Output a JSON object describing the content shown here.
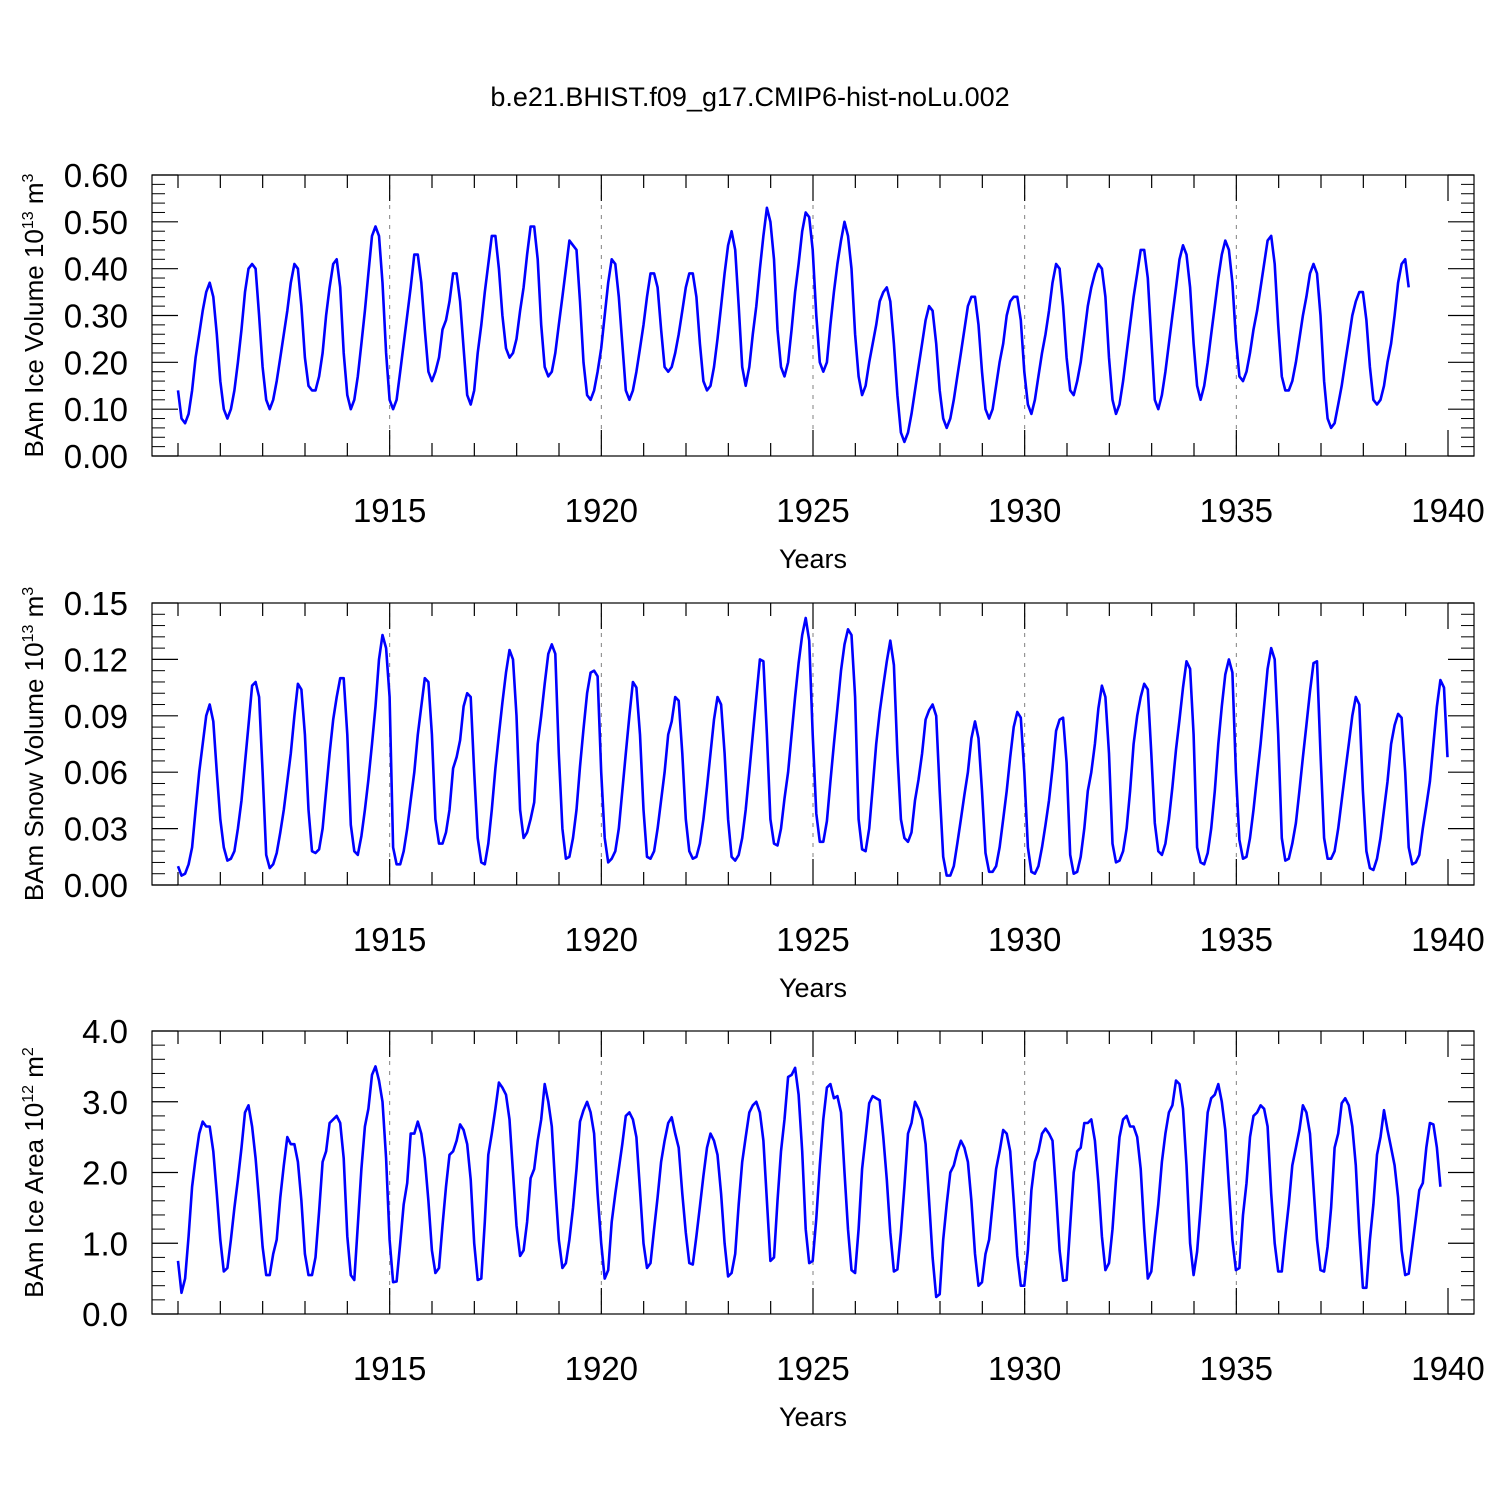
{
  "title": "b.e21.BHIST.f09_g17.CMIP6-hist-noLu.002",
  "line_color": "#0000ff",
  "chart_data": [
    {
      "type": "line",
      "ylabel": "BAm Ice Volume 10",
      "ylabel_exp": "13",
      "ylabel_unit": " m",
      "ylabel_unit_exp": "3",
      "xlabel": "Years",
      "xlim": [
        1910.0,
        1940.0
      ],
      "ylim": [
        0.0,
        0.6
      ],
      "yticks": [
        0.0,
        0.1,
        0.2,
        0.3,
        0.4,
        0.5,
        0.6
      ],
      "ytick_labels": [
        "0.00",
        "0.10",
        "0.20",
        "0.30",
        "0.40",
        "0.50",
        "0.60"
      ],
      "xticks": [
        1915,
        1920,
        1925,
        1930,
        1935,
        1940
      ],
      "xtick_labels": [
        "1915",
        "1920",
        "1925",
        "1930",
        "1935",
        "1940"
      ],
      "vertical_dashed_gridlines": true,
      "start_year": 1910.0,
      "step_years": 0.0833,
      "values": [
        0.14,
        0.08,
        0.07,
        0.09,
        0.14,
        0.21,
        0.26,
        0.31,
        0.35,
        0.37,
        0.34,
        0.26,
        0.16,
        0.1,
        0.08,
        0.1,
        0.14,
        0.2,
        0.27,
        0.35,
        0.4,
        0.41,
        0.4,
        0.3,
        0.19,
        0.12,
        0.1,
        0.12,
        0.16,
        0.21,
        0.26,
        0.31,
        0.37,
        0.41,
        0.4,
        0.32,
        0.21,
        0.15,
        0.14,
        0.14,
        0.17,
        0.22,
        0.3,
        0.36,
        0.41,
        0.42,
        0.36,
        0.22,
        0.13,
        0.1,
        0.12,
        0.17,
        0.24,
        0.31,
        0.39,
        0.47,
        0.49,
        0.47,
        0.37,
        0.22,
        0.12,
        0.1,
        0.12,
        0.18,
        0.24,
        0.3,
        0.36,
        0.43,
        0.43,
        0.37,
        0.27,
        0.18,
        0.16,
        0.18,
        0.21,
        0.27,
        0.29,
        0.33,
        0.39,
        0.39,
        0.33,
        0.23,
        0.13,
        0.11,
        0.14,
        0.22,
        0.28,
        0.35,
        0.41,
        0.47,
        0.47,
        0.4,
        0.3,
        0.23,
        0.21,
        0.22,
        0.25,
        0.31,
        0.36,
        0.43,
        0.49,
        0.49,
        0.42,
        0.28,
        0.19,
        0.17,
        0.18,
        0.22,
        0.28,
        0.34,
        0.4,
        0.46,
        0.45,
        0.44,
        0.33,
        0.2,
        0.13,
        0.12,
        0.14,
        0.18,
        0.23,
        0.3,
        0.37,
        0.42,
        0.41,
        0.34,
        0.24,
        0.14,
        0.12,
        0.14,
        0.18,
        0.23,
        0.28,
        0.34,
        0.39,
        0.39,
        0.36,
        0.27,
        0.19,
        0.18,
        0.19,
        0.22,
        0.26,
        0.31,
        0.36,
        0.39,
        0.39,
        0.34,
        0.24,
        0.16,
        0.14,
        0.15,
        0.19,
        0.25,
        0.32,
        0.39,
        0.45,
        0.48,
        0.44,
        0.32,
        0.19,
        0.15,
        0.19,
        0.26,
        0.32,
        0.4,
        0.47,
        0.53,
        0.5,
        0.42,
        0.27,
        0.19,
        0.17,
        0.2,
        0.27,
        0.35,
        0.41,
        0.48,
        0.52,
        0.51,
        0.44,
        0.3,
        0.2,
        0.18,
        0.2,
        0.28,
        0.35,
        0.41,
        0.46,
        0.5,
        0.47,
        0.4,
        0.26,
        0.17,
        0.13,
        0.15,
        0.2,
        0.24,
        0.28,
        0.33,
        0.35,
        0.36,
        0.33,
        0.24,
        0.13,
        0.05,
        0.03,
        0.05,
        0.09,
        0.14,
        0.19,
        0.24,
        0.29,
        0.32,
        0.31,
        0.24,
        0.14,
        0.08,
        0.06,
        0.08,
        0.12,
        0.17,
        0.22,
        0.27,
        0.32,
        0.34,
        0.34,
        0.28,
        0.18,
        0.1,
        0.08,
        0.1,
        0.15,
        0.2,
        0.24,
        0.3,
        0.33,
        0.34,
        0.34,
        0.29,
        0.18,
        0.11,
        0.09,
        0.12,
        0.17,
        0.22,
        0.26,
        0.31,
        0.37,
        0.41,
        0.4,
        0.32,
        0.21,
        0.14,
        0.13,
        0.16,
        0.2,
        0.26,
        0.32,
        0.36,
        0.39,
        0.41,
        0.4,
        0.34,
        0.21,
        0.12,
        0.09,
        0.11,
        0.16,
        0.22,
        0.28,
        0.34,
        0.39,
        0.44,
        0.44,
        0.38,
        0.25,
        0.12,
        0.1,
        0.13,
        0.18,
        0.24,
        0.3,
        0.36,
        0.42,
        0.45,
        0.43,
        0.36,
        0.24,
        0.15,
        0.12,
        0.15,
        0.2,
        0.26,
        0.32,
        0.38,
        0.43,
        0.46,
        0.44,
        0.37,
        0.25,
        0.17,
        0.16,
        0.18,
        0.22,
        0.27,
        0.31,
        0.36,
        0.41,
        0.46,
        0.47,
        0.41,
        0.28,
        0.17,
        0.14,
        0.14,
        0.16,
        0.2,
        0.25,
        0.3,
        0.34,
        0.39,
        0.41,
        0.39,
        0.3,
        0.16,
        0.08,
        0.06,
        0.07,
        0.11,
        0.15,
        0.2,
        0.25,
        0.3,
        0.33,
        0.35,
        0.35,
        0.29,
        0.19,
        0.12,
        0.11,
        0.12,
        0.15,
        0.2,
        0.24,
        0.3,
        0.37,
        0.41,
        0.42,
        0.36
      ]
    },
    {
      "type": "line",
      "ylabel": "BAm Snow Volume 10",
      "ylabel_exp": "13",
      "ylabel_unit": " m",
      "ylabel_unit_exp": "3",
      "xlabel": "Years",
      "xlim": [
        1910.0,
        1940.0
      ],
      "ylim": [
        0.0,
        0.15
      ],
      "yticks": [
        0.0,
        0.03,
        0.06,
        0.09,
        0.12,
        0.15
      ],
      "ytick_labels": [
        "0.00",
        "0.03",
        "0.06",
        "0.09",
        "0.12",
        "0.15"
      ],
      "xticks": [
        1915,
        1920,
        1925,
        1930,
        1935,
        1940
      ],
      "xtick_labels": [
        "1915",
        "1920",
        "1925",
        "1930",
        "1935",
        "1940"
      ],
      "vertical_dashed_gridlines": true,
      "start_year": 1910.0,
      "step_years": 0.0833,
      "values": [
        0.01,
        0.005,
        0.006,
        0.011,
        0.02,
        0.04,
        0.06,
        0.075,
        0.09,
        0.096,
        0.087,
        0.06,
        0.035,
        0.02,
        0.013,
        0.014,
        0.018,
        0.03,
        0.045,
        0.065,
        0.085,
        0.106,
        0.108,
        0.1,
        0.06,
        0.016,
        0.009,
        0.011,
        0.017,
        0.028,
        0.04,
        0.055,
        0.07,
        0.09,
        0.107,
        0.104,
        0.08,
        0.04,
        0.018,
        0.017,
        0.019,
        0.03,
        0.05,
        0.07,
        0.088,
        0.1,
        0.11,
        0.11,
        0.08,
        0.032,
        0.018,
        0.016,
        0.026,
        0.04,
        0.056,
        0.075,
        0.095,
        0.12,
        0.133,
        0.126,
        0.1,
        0.02,
        0.011,
        0.011,
        0.018,
        0.03,
        0.045,
        0.06,
        0.08,
        0.095,
        0.11,
        0.108,
        0.08,
        0.035,
        0.022,
        0.022,
        0.028,
        0.04,
        0.062,
        0.068,
        0.077,
        0.095,
        0.102,
        0.1,
        0.06,
        0.025,
        0.012,
        0.011,
        0.022,
        0.04,
        0.062,
        0.08,
        0.097,
        0.113,
        0.125,
        0.12,
        0.09,
        0.04,
        0.025,
        0.028,
        0.035,
        0.044,
        0.075,
        0.09,
        0.107,
        0.123,
        0.128,
        0.123,
        0.07,
        0.03,
        0.014,
        0.015,
        0.025,
        0.04,
        0.063,
        0.083,
        0.102,
        0.113,
        0.114,
        0.111,
        0.06,
        0.025,
        0.012,
        0.014,
        0.018,
        0.03,
        0.05,
        0.07,
        0.09,
        0.108,
        0.105,
        0.08,
        0.04,
        0.015,
        0.014,
        0.018,
        0.03,
        0.045,
        0.06,
        0.08,
        0.087,
        0.1,
        0.098,
        0.07,
        0.035,
        0.018,
        0.014,
        0.015,
        0.022,
        0.035,
        0.052,
        0.07,
        0.088,
        0.1,
        0.096,
        0.07,
        0.035,
        0.015,
        0.013,
        0.016,
        0.025,
        0.04,
        0.06,
        0.08,
        0.1,
        0.12,
        0.119,
        0.08,
        0.035,
        0.022,
        0.021,
        0.03,
        0.046,
        0.06,
        0.08,
        0.1,
        0.118,
        0.133,
        0.142,
        0.13,
        0.08,
        0.038,
        0.023,
        0.023,
        0.034,
        0.055,
        0.075,
        0.094,
        0.114,
        0.128,
        0.136,
        0.133,
        0.1,
        0.035,
        0.019,
        0.018,
        0.03,
        0.052,
        0.075,
        0.092,
        0.106,
        0.119,
        0.13,
        0.117,
        0.07,
        0.035,
        0.025,
        0.023,
        0.028,
        0.045,
        0.056,
        0.07,
        0.088,
        0.093,
        0.096,
        0.09,
        0.05,
        0.015,
        0.005,
        0.005,
        0.01,
        0.022,
        0.035,
        0.048,
        0.06,
        0.078,
        0.087,
        0.078,
        0.05,
        0.017,
        0.007,
        0.007,
        0.01,
        0.02,
        0.035,
        0.05,
        0.068,
        0.084,
        0.092,
        0.089,
        0.06,
        0.02,
        0.007,
        0.006,
        0.01,
        0.02,
        0.032,
        0.045,
        0.062,
        0.082,
        0.088,
        0.089,
        0.065,
        0.016,
        0.006,
        0.007,
        0.015,
        0.03,
        0.05,
        0.06,
        0.075,
        0.094,
        0.106,
        0.1,
        0.07,
        0.022,
        0.012,
        0.013,
        0.018,
        0.03,
        0.05,
        0.075,
        0.09,
        0.1,
        0.107,
        0.104,
        0.07,
        0.033,
        0.018,
        0.016,
        0.022,
        0.035,
        0.052,
        0.072,
        0.088,
        0.105,
        0.119,
        0.115,
        0.08,
        0.02,
        0.012,
        0.011,
        0.017,
        0.03,
        0.05,
        0.075,
        0.095,
        0.112,
        0.12,
        0.113,
        0.06,
        0.024,
        0.014,
        0.015,
        0.025,
        0.04,
        0.058,
        0.075,
        0.095,
        0.115,
        0.126,
        0.12,
        0.08,
        0.025,
        0.013,
        0.014,
        0.022,
        0.033,
        0.05,
        0.068,
        0.085,
        0.103,
        0.118,
        0.119,
        0.07,
        0.025,
        0.014,
        0.014,
        0.018,
        0.03,
        0.045,
        0.06,
        0.075,
        0.09,
        0.1,
        0.096,
        0.05,
        0.018,
        0.009,
        0.008,
        0.014,
        0.025,
        0.04,
        0.055,
        0.075,
        0.085,
        0.091,
        0.089,
        0.06,
        0.02,
        0.011,
        0.012,
        0.016,
        0.03,
        0.042,
        0.055,
        0.075,
        0.095,
        0.109,
        0.105,
        0.068
      ]
    },
    {
      "type": "line",
      "ylabel": "BAm Ice Area 10",
      "ylabel_exp": "12",
      "ylabel_unit": " m",
      "ylabel_unit_exp": "2",
      "xlabel": "Years",
      "xlim": [
        1910.0,
        1940.0
      ],
      "ylim": [
        0.0,
        4.0
      ],
      "yticks": [
        0.0,
        1.0,
        2.0,
        3.0,
        4.0
      ],
      "ytick_labels": [
        "0.0",
        "1.0",
        "2.0",
        "3.0",
        "4.0"
      ],
      "xticks": [
        1915,
        1920,
        1925,
        1930,
        1935,
        1940
      ],
      "xtick_labels": [
        "1915",
        "1920",
        "1925",
        "1930",
        "1935",
        "1940"
      ],
      "vertical_dashed_gridlines": true,
      "start_year": 1910.0,
      "step_years": 0.0833,
      "values": [
        0.75,
        0.3,
        0.5,
        1.1,
        1.8,
        2.2,
        2.55,
        2.72,
        2.65,
        2.65,
        2.3,
        1.7,
        1.05,
        0.6,
        0.65,
        1.05,
        1.5,
        1.9,
        2.35,
        2.85,
        2.95,
        2.65,
        2.2,
        1.6,
        0.95,
        0.55,
        0.55,
        0.85,
        1.05,
        1.65,
        2.1,
        2.5,
        2.4,
        2.4,
        2.15,
        1.6,
        0.85,
        0.55,
        0.55,
        0.8,
        1.45,
        2.15,
        2.3,
        2.7,
        2.75,
        2.8,
        2.7,
        2.2,
        1.1,
        0.55,
        0.48,
        1.25,
        2.05,
        2.65,
        2.9,
        3.38,
        3.5,
        3.3,
        3.0,
        2.2,
        1.05,
        0.45,
        0.46,
        1.0,
        1.55,
        1.85,
        2.55,
        2.55,
        2.72,
        2.55,
        2.2,
        1.6,
        0.9,
        0.58,
        0.65,
        1.25,
        1.8,
        2.25,
        2.3,
        2.45,
        2.68,
        2.6,
        2.4,
        1.9,
        1.0,
        0.48,
        0.5,
        1.3,
        2.25,
        2.55,
        2.9,
        3.27,
        3.2,
        3.1,
        2.75,
        2.0,
        1.25,
        0.82,
        0.9,
        1.3,
        1.92,
        2.05,
        2.45,
        2.75,
        3.25,
        3.0,
        2.65,
        1.8,
        1.05,
        0.65,
        0.72,
        1.05,
        1.5,
        2.05,
        2.72,
        2.88,
        3.0,
        2.85,
        2.55,
        1.7,
        1.0,
        0.5,
        0.62,
        1.3,
        1.7,
        2.05,
        2.4,
        2.8,
        2.85,
        2.75,
        2.5,
        1.75,
        1.0,
        0.65,
        0.72,
        1.2,
        1.65,
        2.15,
        2.45,
        2.7,
        2.78,
        2.55,
        2.35,
        1.7,
        1.15,
        0.72,
        0.7,
        1.1,
        1.52,
        1.95,
        2.35,
        2.55,
        2.45,
        2.25,
        1.7,
        1.0,
        0.53,
        0.58,
        0.85,
        1.55,
        2.15,
        2.5,
        2.85,
        2.95,
        3.0,
        2.85,
        2.45,
        1.6,
        0.75,
        0.8,
        1.6,
        2.3,
        2.75,
        3.35,
        3.38,
        3.48,
        3.1,
        2.3,
        1.2,
        0.72,
        0.75,
        1.35,
        2.1,
        2.75,
        3.2,
        3.25,
        3.05,
        3.08,
        2.85,
        2.0,
        1.2,
        0.62,
        0.58,
        1.2,
        2.05,
        2.5,
        2.98,
        3.08,
        3.05,
        3.02,
        2.5,
        1.9,
        1.15,
        0.6,
        0.63,
        1.15,
        1.8,
        2.55,
        2.7,
        3.0,
        2.9,
        2.75,
        2.4,
        1.6,
        0.8,
        0.24,
        0.28,
        1.05,
        1.55,
        2.0,
        2.1,
        2.3,
        2.45,
        2.35,
        2.15,
        1.6,
        0.85,
        0.4,
        0.45,
        0.85,
        1.05,
        1.55,
        2.05,
        2.3,
        2.6,
        2.55,
        2.3,
        1.6,
        0.82,
        0.4,
        0.4,
        0.9,
        1.75,
        2.15,
        2.3,
        2.55,
        2.62,
        2.55,
        2.45,
        1.7,
        0.9,
        0.47,
        0.48,
        1.25,
        2.0,
        2.3,
        2.35,
        2.7,
        2.7,
        2.75,
        2.45,
        1.85,
        1.1,
        0.62,
        0.72,
        1.2,
        1.9,
        2.5,
        2.75,
        2.8,
        2.65,
        2.65,
        2.5,
        2.05,
        1.2,
        0.5,
        0.6,
        1.1,
        1.55,
        2.15,
        2.55,
        2.85,
        2.95,
        3.3,
        3.25,
        2.9,
        2.1,
        1.0,
        0.55,
        0.88,
        1.5,
        2.2,
        2.85,
        3.05,
        3.1,
        3.25,
        3.0,
        2.6,
        1.8,
        1.05,
        0.62,
        0.65,
        1.4,
        1.85,
        2.5,
        2.8,
        2.85,
        2.95,
        2.9,
        2.65,
        1.7,
        1.0,
        0.6,
        0.6,
        1.1,
        1.55,
        2.1,
        2.35,
        2.6,
        2.95,
        2.85,
        2.55,
        1.8,
        1.05,
        0.62,
        0.6,
        0.95,
        1.5,
        2.35,
        2.55,
        2.98,
        3.05,
        2.95,
        2.65,
        2.1,
        1.15,
        0.37,
        0.37,
        1.05,
        1.55,
        2.25,
        2.5,
        2.88,
        2.6,
        2.35,
        2.1,
        1.65,
        0.9,
        0.55,
        0.57,
        0.95,
        1.35,
        1.75,
        1.85,
        2.35,
        2.7,
        2.68,
        2.35,
        1.8
      ]
    }
  ]
}
